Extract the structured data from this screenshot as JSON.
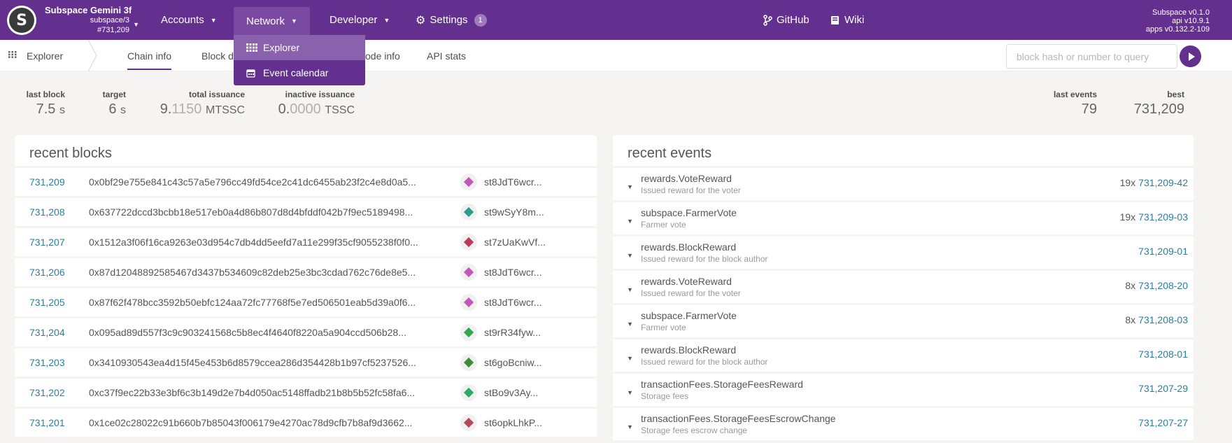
{
  "header": {
    "logo": "S",
    "chain_name": "Subspace Gemini 3f",
    "chain_spec": "subspace/3",
    "chain_block": "#731,209",
    "nav": {
      "accounts": "Accounts",
      "network": "Network",
      "developer": "Developer",
      "settings": "Settings",
      "settings_badge": "1",
      "github": "GitHub",
      "wiki": "Wiki"
    },
    "versions": [
      "Subspace v0.1.0",
      "api v10.9.1",
      "apps v0.132.2-109"
    ]
  },
  "network_menu": {
    "items": [
      {
        "label": "Explorer",
        "icon": "grid-icon",
        "active": true
      },
      {
        "label": "Event calendar",
        "icon": "calendar-icon",
        "active": false
      }
    ]
  },
  "subnav": {
    "app": "Explorer",
    "tabs": [
      "Chain info",
      "Block d",
      "ode info",
      "API stats"
    ],
    "query_placeholder": "block hash or number to query"
  },
  "summary": {
    "last_block": {
      "label": "last block",
      "value": "7.5",
      "unit": "s"
    },
    "target": {
      "label": "target",
      "value": "6",
      "unit": "s"
    },
    "total_issuance": {
      "label": "total issuance",
      "int": "9.",
      "frac": "1150",
      "unit": "MTSSC"
    },
    "inactive_issuance": {
      "label": "inactive issuance",
      "int": "0.",
      "frac": "0000",
      "unit": "TSSC"
    },
    "last_events": {
      "label": "last events",
      "value": "79"
    },
    "best": {
      "label": "best",
      "value": "731,209"
    }
  },
  "recent_blocks": {
    "title": "recent blocks",
    "rows": [
      {
        "number": "731,209",
        "hash": "0x0bf29e755e841c43c57a5e796cc49fd54ce2c41dc6455ab23f2c4e8d0a5...",
        "author": "st8JdT6wcr...",
        "color": "#c257b8"
      },
      {
        "number": "731,208",
        "hash": "0x637722dccd3bcbb18e517eb0a4d86b807d8d4bfddf042b7f9ec5189498...",
        "author": "st9wSyY8m...",
        "color": "#2a9d8f"
      },
      {
        "number": "731,207",
        "hash": "0x1512a3f06f16ca9263e03d954c7db4dd5eefd7a11e299f35cf9055238f0f0...",
        "author": "st7zUaKwVf...",
        "color": "#c0395a"
      },
      {
        "number": "731,206",
        "hash": "0x87d12048892585467d3437b534609c82deb25e3bc3cdad762c76de8e5...",
        "author": "st8JdT6wcr...",
        "color": "#c257b8"
      },
      {
        "number": "731,205",
        "hash": "0x87f62f478bcc3592b50ebfc124aa72fc77768f5e7ed506501eab5d39a0f6...",
        "author": "st8JdT6wcr...",
        "color": "#c257b8"
      },
      {
        "number": "731,204",
        "hash": "0x095ad89d557f3c9c903241568c5b8ec4f4640f8220a5a904ccd506b28...",
        "author": "st9rR34fyw...",
        "color": "#2fa84f"
      },
      {
        "number": "731,203",
        "hash": "0x3410930543ea4d15f45e453b6d8579ccea286d354428b1b97cf5237526...",
        "author": "st6goBcniw...",
        "color": "#3c8d3c"
      },
      {
        "number": "731,202",
        "hash": "0xc37f9ec22b33e3bf6c3b149d2e7b4d050ac5148ffadb21b8b5b52fc58fa6...",
        "author": "stBo9v3Ay...",
        "color": "#2fa86a"
      },
      {
        "number": "731,201",
        "hash": "0x1ce02c28022c91b660b7b85043f006179e4270ac78d9cfb7b8af9d3662...",
        "author": "st6opkLhkP...",
        "color": "#b5475a"
      }
    ]
  },
  "recent_events": {
    "title": "recent events",
    "rows": [
      {
        "name": "rewards.VoteReward",
        "desc": "Issued reward for the voter",
        "count": "19x",
        "id": "731,209-42"
      },
      {
        "name": "subspace.FarmerVote",
        "desc": "Farmer vote",
        "count": "19x",
        "id": "731,209-03"
      },
      {
        "name": "rewards.BlockReward",
        "desc": "Issued reward for the block author",
        "count": "",
        "id": "731,209-01"
      },
      {
        "name": "rewards.VoteReward",
        "desc": "Issued reward for the voter",
        "count": "8x",
        "id": "731,208-20"
      },
      {
        "name": "subspace.FarmerVote",
        "desc": "Farmer vote",
        "count": "8x",
        "id": "731,208-03"
      },
      {
        "name": "rewards.BlockReward",
        "desc": "Issued reward for the block author",
        "count": "",
        "id": "731,208-01"
      },
      {
        "name": "transactionFees.StorageFeesReward",
        "desc": "Storage fees",
        "count": "",
        "id": "731,207-29"
      },
      {
        "name": "transactionFees.StorageFeesEscrowChange",
        "desc": "Storage fees escrow change",
        "count": "",
        "id": "731,207-27"
      }
    ]
  }
}
